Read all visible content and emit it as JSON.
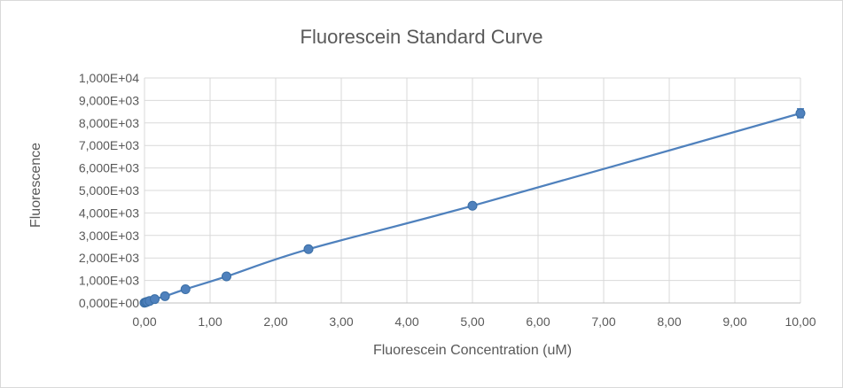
{
  "chart_data": {
    "type": "scatter",
    "title": "Fluorescein Standard Curve",
    "xlabel": "Fluorescein Concentration (uM)",
    "ylabel": "Fluorescence",
    "xlim": [
      0,
      10
    ],
    "ylim": [
      0,
      10000
    ],
    "x_ticks": [
      "0,00",
      "1,00",
      "2,00",
      "3,00",
      "4,00",
      "5,00",
      "6,00",
      "7,00",
      "8,00",
      "9,00",
      "10,00"
    ],
    "y_ticks": [
      "0,000E+00",
      "1,000E+03",
      "2,000E+03",
      "3,000E+03",
      "4,000E+03",
      "5,000E+03",
      "6,000E+03",
      "7,000E+03",
      "8,000E+03",
      "9,000E+03",
      "1,000E+04"
    ],
    "grid": true,
    "series": [
      {
        "x": [
          0,
          0.0195,
          0.039,
          0.078,
          0.156,
          0.3125,
          0.625,
          1.25,
          2.5,
          5,
          10
        ],
        "y": [
          10,
          30,
          50,
          90,
          170,
          300,
          610,
          1180,
          2390,
          4320,
          8430
        ],
        "y_error": [
          20,
          20,
          20,
          20,
          20,
          30,
          40,
          50,
          60,
          80,
          200
        ],
        "color": "#4f81bd",
        "smoothed_line": true
      }
    ]
  }
}
